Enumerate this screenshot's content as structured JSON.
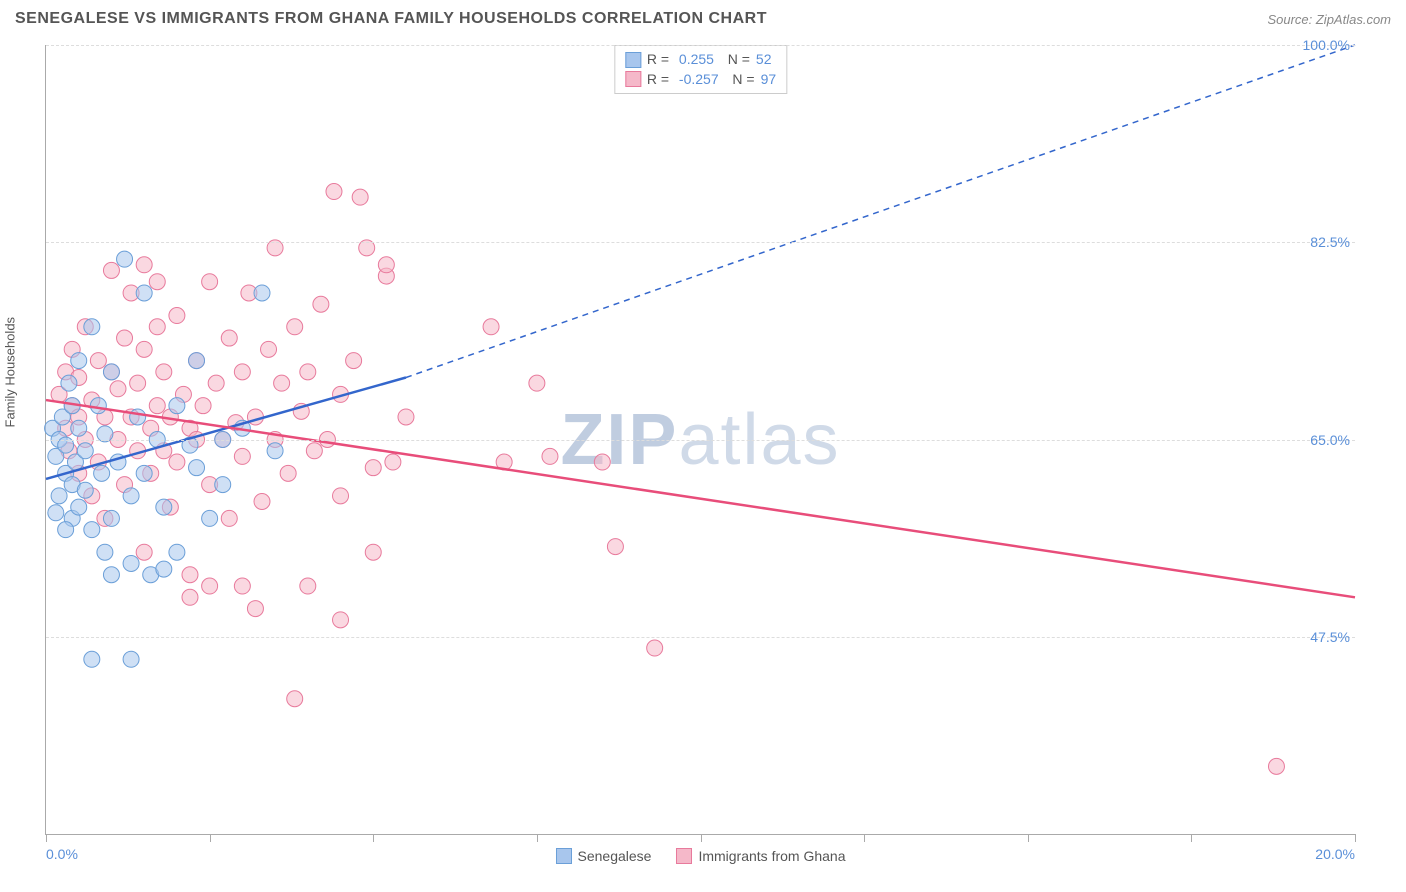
{
  "header": {
    "title": "SENEGALESE VS IMMIGRANTS FROM GHANA FAMILY HOUSEHOLDS CORRELATION CHART",
    "source": "Source: ZipAtlas.com"
  },
  "watermark": {
    "prefix": "ZIP",
    "suffix": "atlas"
  },
  "y_axis": {
    "label": "Family Households",
    "min": 30.0,
    "max": 100.0,
    "ticks": [
      47.5,
      65.0,
      82.5,
      100.0
    ],
    "tick_labels": [
      "47.5%",
      "65.0%",
      "82.5%",
      "100.0%"
    ],
    "tick_color": "#5a8fd8",
    "grid_color": "#dddddd"
  },
  "x_axis": {
    "min": 0.0,
    "max": 20.0,
    "left_label": "0.0%",
    "right_label": "20.0%",
    "ticks": [
      0,
      2.5,
      5,
      7.5,
      10,
      12.5,
      15,
      17.5,
      20
    ],
    "tick_color": "#5a8fd8"
  },
  "series": [
    {
      "name": "Senegalese",
      "color_fill": "#a8c6ed",
      "color_stroke": "#6b9fd8",
      "line_color": "#3366cc",
      "R": "0.255",
      "N": "52",
      "reg_start": {
        "x": 0.0,
        "y": 61.5
      },
      "reg_end_solid": {
        "x": 5.5,
        "y": 70.5
      },
      "reg_end_dash": {
        "x": 20.0,
        "y": 100.0
      },
      "points": [
        {
          "x": 0.1,
          "y": 66
        },
        {
          "x": 0.15,
          "y": 63.5
        },
        {
          "x": 0.2,
          "y": 60
        },
        {
          "x": 0.2,
          "y": 65
        },
        {
          "x": 0.25,
          "y": 67
        },
        {
          "x": 0.3,
          "y": 62
        },
        {
          "x": 0.3,
          "y": 64.5
        },
        {
          "x": 0.35,
          "y": 70
        },
        {
          "x": 0.4,
          "y": 58
        },
        {
          "x": 0.4,
          "y": 61
        },
        {
          "x": 0.4,
          "y": 68
        },
        {
          "x": 0.45,
          "y": 63
        },
        {
          "x": 0.5,
          "y": 59
        },
        {
          "x": 0.5,
          "y": 66
        },
        {
          "x": 0.5,
          "y": 72
        },
        {
          "x": 0.6,
          "y": 64
        },
        {
          "x": 0.6,
          "y": 60.5
        },
        {
          "x": 0.7,
          "y": 75
        },
        {
          "x": 0.7,
          "y": 57
        },
        {
          "x": 0.8,
          "y": 68
        },
        {
          "x": 0.85,
          "y": 62
        },
        {
          "x": 0.9,
          "y": 55
        },
        {
          "x": 0.9,
          "y": 65.5
        },
        {
          "x": 1.0,
          "y": 71
        },
        {
          "x": 1.0,
          "y": 58
        },
        {
          "x": 1.1,
          "y": 63
        },
        {
          "x": 1.2,
          "y": 81
        },
        {
          "x": 1.3,
          "y": 54
        },
        {
          "x": 1.3,
          "y": 60
        },
        {
          "x": 1.4,
          "y": 67
        },
        {
          "x": 1.5,
          "y": 78
        },
        {
          "x": 1.5,
          "y": 62
        },
        {
          "x": 1.6,
          "y": 53
        },
        {
          "x": 1.7,
          "y": 65
        },
        {
          "x": 1.8,
          "y": 59
        },
        {
          "x": 1.8,
          "y": 53.5
        },
        {
          "x": 2.0,
          "y": 68
        },
        {
          "x": 2.0,
          "y": 55
        },
        {
          "x": 2.2,
          "y": 64.5
        },
        {
          "x": 2.3,
          "y": 72
        },
        {
          "x": 2.3,
          "y": 62.5
        },
        {
          "x": 2.5,
          "y": 58
        },
        {
          "x": 2.7,
          "y": 65
        },
        {
          "x": 2.7,
          "y": 61
        },
        {
          "x": 3.0,
          "y": 66
        },
        {
          "x": 3.3,
          "y": 78
        },
        {
          "x": 3.5,
          "y": 64
        },
        {
          "x": 0.7,
          "y": 45.5
        },
        {
          "x": 1.3,
          "y": 45.5
        },
        {
          "x": 1.0,
          "y": 53
        },
        {
          "x": 0.3,
          "y": 57
        },
        {
          "x": 0.15,
          "y": 58.5
        }
      ]
    },
    {
      "name": "Immigrants from Ghana",
      "color_fill": "#f5b8c9",
      "color_stroke": "#e87a9c",
      "line_color": "#e84d7a",
      "R": "-0.257",
      "N": "97",
      "reg_start": {
        "x": 0.0,
        "y": 68.5
      },
      "reg_end_solid": {
        "x": 20.0,
        "y": 51.0
      },
      "reg_end_dash": null,
      "points": [
        {
          "x": 0.2,
          "y": 69
        },
        {
          "x": 0.3,
          "y": 66
        },
        {
          "x": 0.3,
          "y": 71
        },
        {
          "x": 0.35,
          "y": 64
        },
        {
          "x": 0.4,
          "y": 68
        },
        {
          "x": 0.4,
          "y": 73
        },
        {
          "x": 0.5,
          "y": 62
        },
        {
          "x": 0.5,
          "y": 67
        },
        {
          "x": 0.5,
          "y": 70.5
        },
        {
          "x": 0.6,
          "y": 65
        },
        {
          "x": 0.6,
          "y": 75
        },
        {
          "x": 0.7,
          "y": 60
        },
        {
          "x": 0.7,
          "y": 68.5
        },
        {
          "x": 0.8,
          "y": 72
        },
        {
          "x": 0.8,
          "y": 63
        },
        {
          "x": 0.9,
          "y": 67
        },
        {
          "x": 0.9,
          "y": 58
        },
        {
          "x": 1.0,
          "y": 71
        },
        {
          "x": 1.0,
          "y": 80
        },
        {
          "x": 1.1,
          "y": 65
        },
        {
          "x": 1.1,
          "y": 69.5
        },
        {
          "x": 1.2,
          "y": 74
        },
        {
          "x": 1.2,
          "y": 61
        },
        {
          "x": 1.3,
          "y": 67
        },
        {
          "x": 1.3,
          "y": 78
        },
        {
          "x": 1.4,
          "y": 64
        },
        {
          "x": 1.4,
          "y": 70
        },
        {
          "x": 1.5,
          "y": 55
        },
        {
          "x": 1.5,
          "y": 73
        },
        {
          "x": 1.5,
          "y": 80.5
        },
        {
          "x": 1.6,
          "y": 66
        },
        {
          "x": 1.6,
          "y": 62
        },
        {
          "x": 1.7,
          "y": 68
        },
        {
          "x": 1.7,
          "y": 75
        },
        {
          "x": 1.8,
          "y": 64
        },
        {
          "x": 1.8,
          "y": 71
        },
        {
          "x": 1.9,
          "y": 59
        },
        {
          "x": 1.9,
          "y": 67
        },
        {
          "x": 2.0,
          "y": 76
        },
        {
          "x": 2.0,
          "y": 63
        },
        {
          "x": 2.1,
          "y": 69
        },
        {
          "x": 2.2,
          "y": 53
        },
        {
          "x": 2.2,
          "y": 66
        },
        {
          "x": 2.3,
          "y": 72
        },
        {
          "x": 2.3,
          "y": 65
        },
        {
          "x": 2.4,
          "y": 68
        },
        {
          "x": 2.5,
          "y": 61
        },
        {
          "x": 2.5,
          "y": 52
        },
        {
          "x": 2.5,
          "y": 79
        },
        {
          "x": 2.6,
          "y": 70
        },
        {
          "x": 2.7,
          "y": 65
        },
        {
          "x": 2.8,
          "y": 74
        },
        {
          "x": 2.8,
          "y": 58
        },
        {
          "x": 2.9,
          "y": 66.5
        },
        {
          "x": 3.0,
          "y": 71
        },
        {
          "x": 3.0,
          "y": 63.5
        },
        {
          "x": 3.1,
          "y": 78
        },
        {
          "x": 3.2,
          "y": 67
        },
        {
          "x": 3.3,
          "y": 59.5
        },
        {
          "x": 3.4,
          "y": 73
        },
        {
          "x": 3.5,
          "y": 65
        },
        {
          "x": 3.5,
          "y": 82
        },
        {
          "x": 3.6,
          "y": 70
        },
        {
          "x": 3.7,
          "y": 62
        },
        {
          "x": 3.8,
          "y": 75
        },
        {
          "x": 3.9,
          "y": 67.5
        },
        {
          "x": 4.0,
          "y": 52
        },
        {
          "x": 4.0,
          "y": 71
        },
        {
          "x": 4.1,
          "y": 64
        },
        {
          "x": 4.2,
          "y": 77
        },
        {
          "x": 4.3,
          "y": 65
        },
        {
          "x": 4.4,
          "y": 87
        },
        {
          "x": 4.5,
          "y": 69
        },
        {
          "x": 4.5,
          "y": 60
        },
        {
          "x": 4.7,
          "y": 72
        },
        {
          "x": 4.8,
          "y": 86.5
        },
        {
          "x": 4.9,
          "y": 82
        },
        {
          "x": 5.0,
          "y": 55
        },
        {
          "x": 5.0,
          "y": 62.5
        },
        {
          "x": 5.2,
          "y": 79.5
        },
        {
          "x": 5.2,
          "y": 80.5
        },
        {
          "x": 5.3,
          "y": 63
        },
        {
          "x": 5.5,
          "y": 67
        },
        {
          "x": 3.8,
          "y": 42
        },
        {
          "x": 4.5,
          "y": 49
        },
        {
          "x": 6.8,
          "y": 75
        },
        {
          "x": 7.0,
          "y": 63
        },
        {
          "x": 7.5,
          "y": 70
        },
        {
          "x": 7.7,
          "y": 63.5
        },
        {
          "x": 8.5,
          "y": 63
        },
        {
          "x": 8.7,
          "y": 55.5
        },
        {
          "x": 9.3,
          "y": 46.5
        },
        {
          "x": 2.2,
          "y": 51
        },
        {
          "x": 3.0,
          "y": 52
        },
        {
          "x": 3.2,
          "y": 50
        },
        {
          "x": 18.8,
          "y": 36
        },
        {
          "x": 1.7,
          "y": 79
        }
      ]
    }
  ],
  "style": {
    "plot_bg": "#ffffff",
    "axis_color": "#aaaaaa",
    "marker_radius": 8,
    "marker_opacity": 0.55,
    "title_fontsize": 16,
    "label_fontsize": 13,
    "tick_fontsize": 14
  }
}
